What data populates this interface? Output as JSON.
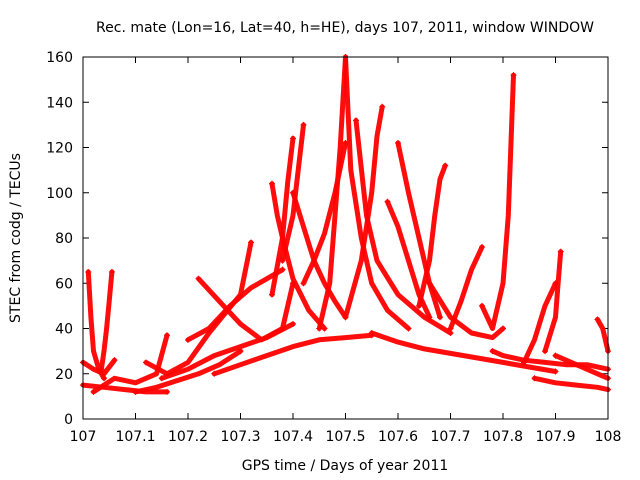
{
  "chart_data": {
    "type": "scatter",
    "title": "Rec. mate (Lon=16, Lat=40, h=HE), days 107, 2011, window WINDOW",
    "xlabel": "GPS time / Days of year 2011",
    "ylabel": "STEC from codg / TECUs",
    "xlim": [
      107,
      108
    ],
    "ylim": [
      0,
      160
    ],
    "xticks": [
      107,
      107.1,
      107.2,
      107.3,
      107.4,
      107.5,
      107.6,
      107.7,
      107.8,
      107.9,
      108
    ],
    "xtick_labels": [
      "107",
      "107.1",
      "107.2",
      "107.3",
      "107.4",
      "107.5",
      "107.6",
      "107.7",
      "107.8",
      "107.9",
      "108"
    ],
    "yticks": [
      0,
      20,
      40,
      60,
      80,
      100,
      120,
      140,
      160
    ],
    "ytick_labels": [
      "0",
      "20",
      "40",
      "60",
      "80",
      "100",
      "120",
      "140",
      "160"
    ],
    "grid": false,
    "marker": "+",
    "color": "#ff0000",
    "series": [
      {
        "x": [
          107.0,
          107.02,
          107.04,
          107.06
        ],
        "y": [
          25,
          22,
          20,
          26
        ]
      },
      {
        "x": [
          107.01,
          107.015,
          107.02,
          107.03,
          107.04
        ],
        "y": [
          65,
          45,
          30,
          22,
          18
        ]
      },
      {
        "x": [
          107.035,
          107.04,
          107.045,
          107.05,
          107.055
        ],
        "y": [
          22,
          30,
          40,
          52,
          65
        ]
      },
      {
        "x": [
          107.0,
          107.04,
          107.08,
          107.12,
          107.16
        ],
        "y": [
          15,
          14,
          13,
          12,
          12
        ]
      },
      {
        "x": [
          107.02,
          107.06,
          107.1,
          107.14,
          107.16
        ],
        "y": [
          12,
          18,
          16,
          20,
          37
        ]
      },
      {
        "x": [
          107.1,
          107.14,
          107.18,
          107.22,
          107.26,
          107.3
        ],
        "y": [
          12,
          14,
          17,
          20,
          24,
          30
        ]
      },
      {
        "x": [
          107.12,
          107.16,
          107.2,
          107.24,
          107.3,
          107.32
        ],
        "y": [
          25,
          20,
          25,
          38,
          55,
          78
        ]
      },
      {
        "x": [
          107.15,
          107.2,
          107.25,
          107.3,
          107.35,
          107.4
        ],
        "y": [
          18,
          22,
          28,
          32,
          36,
          42
        ]
      },
      {
        "x": [
          107.2,
          107.24,
          107.28,
          107.32,
          107.38
        ],
        "y": [
          35,
          40,
          50,
          58,
          66
        ]
      },
      {
        "x": [
          107.22,
          107.26,
          107.3,
          107.34,
          107.38,
          107.4
        ],
        "y": [
          62,
          52,
          42,
          35,
          40,
          60
        ]
      },
      {
        "x": [
          107.25,
          107.3,
          107.35,
          107.4,
          107.45,
          107.5,
          107.55
        ],
        "y": [
          20,
          24,
          28,
          32,
          35,
          36,
          37
        ]
      },
      {
        "x": [
          107.36,
          107.37,
          107.38,
          107.4,
          107.43,
          107.46
        ],
        "y": [
          104,
          90,
          80,
          62,
          48,
          40
        ]
      },
      {
        "x": [
          107.36,
          107.38,
          107.39,
          107.4
        ],
        "y": [
          55,
          80,
          105,
          124
        ]
      },
      {
        "x": [
          107.38,
          107.4,
          107.41,
          107.42
        ],
        "y": [
          70,
          90,
          110,
          130
        ]
      },
      {
        "x": [
          107.4,
          107.42,
          107.44,
          107.46,
          107.48,
          107.5
        ],
        "y": [
          100,
          85,
          70,
          60,
          52,
          45
        ]
      },
      {
        "x": [
          107.42,
          107.44,
          107.46,
          107.48,
          107.5
        ],
        "y": [
          60,
          70,
          82,
          100,
          122
        ]
      },
      {
        "x": [
          107.45,
          107.47,
          107.48,
          107.49,
          107.5
        ],
        "y": [
          40,
          60,
          90,
          120,
          160
        ]
      },
      {
        "x": [
          107.5,
          107.51,
          107.53,
          107.55,
          107.58,
          107.62
        ],
        "y": [
          160,
          110,
          80,
          60,
          48,
          40
        ]
      },
      {
        "x": [
          107.5,
          107.53,
          107.55,
          107.56,
          107.57
        ],
        "y": [
          45,
          70,
          100,
          125,
          138
        ]
      },
      {
        "x": [
          107.52,
          107.54,
          107.56,
          107.6,
          107.65,
          107.7
        ],
        "y": [
          132,
          90,
          70,
          55,
          45,
          38
        ]
      },
      {
        "x": [
          107.58,
          107.6,
          107.62,
          107.64,
          107.66
        ],
        "y": [
          96,
          85,
          70,
          55,
          45
        ]
      },
      {
        "x": [
          107.6,
          107.62,
          107.64,
          107.66,
          107.68
        ],
        "y": [
          122,
          100,
          80,
          60,
          45
        ]
      },
      {
        "x": [
          107.64,
          107.66,
          107.67,
          107.68,
          107.69
        ],
        "y": [
          50,
          70,
          90,
          106,
          112
        ]
      },
      {
        "x": [
          107.66,
          107.7,
          107.74,
          107.78,
          107.8
        ],
        "y": [
          60,
          45,
          38,
          36,
          40
        ]
      },
      {
        "x": [
          107.7,
          107.72,
          107.74,
          107.76
        ],
        "y": [
          40,
          52,
          66,
          76
        ]
      },
      {
        "x": [
          107.76,
          107.78,
          107.8,
          107.81,
          107.82
        ],
        "y": [
          50,
          40,
          60,
          90,
          152
        ]
      },
      {
        "x": [
          107.78,
          107.8,
          107.84,
          107.88,
          107.92,
          107.96,
          108.0
        ],
        "y": [
          30,
          28,
          26,
          25,
          24,
          24,
          22
        ]
      },
      {
        "x": [
          107.55,
          107.6,
          107.65,
          107.7,
          107.75,
          107.8,
          107.85,
          107.9
        ],
        "y": [
          38,
          34,
          31,
          29,
          27,
          25,
          23,
          21
        ]
      },
      {
        "x": [
          107.84,
          107.86,
          107.88,
          107.9
        ],
        "y": [
          25,
          35,
          50,
          60
        ]
      },
      {
        "x": [
          107.88,
          107.9,
          107.905,
          107.91
        ],
        "y": [
          30,
          45,
          60,
          74
        ]
      },
      {
        "x": [
          107.9,
          107.94,
          107.98,
          108.0
        ],
        "y": [
          28,
          24,
          20,
          18
        ]
      },
      {
        "x": [
          107.86,
          107.9,
          107.94,
          107.98,
          108.0
        ],
        "y": [
          18,
          16,
          15,
          14,
          13
        ]
      },
      {
        "x": [
          107.98,
          107.99,
          108.0
        ],
        "y": [
          44,
          40,
          30
        ]
      }
    ]
  }
}
